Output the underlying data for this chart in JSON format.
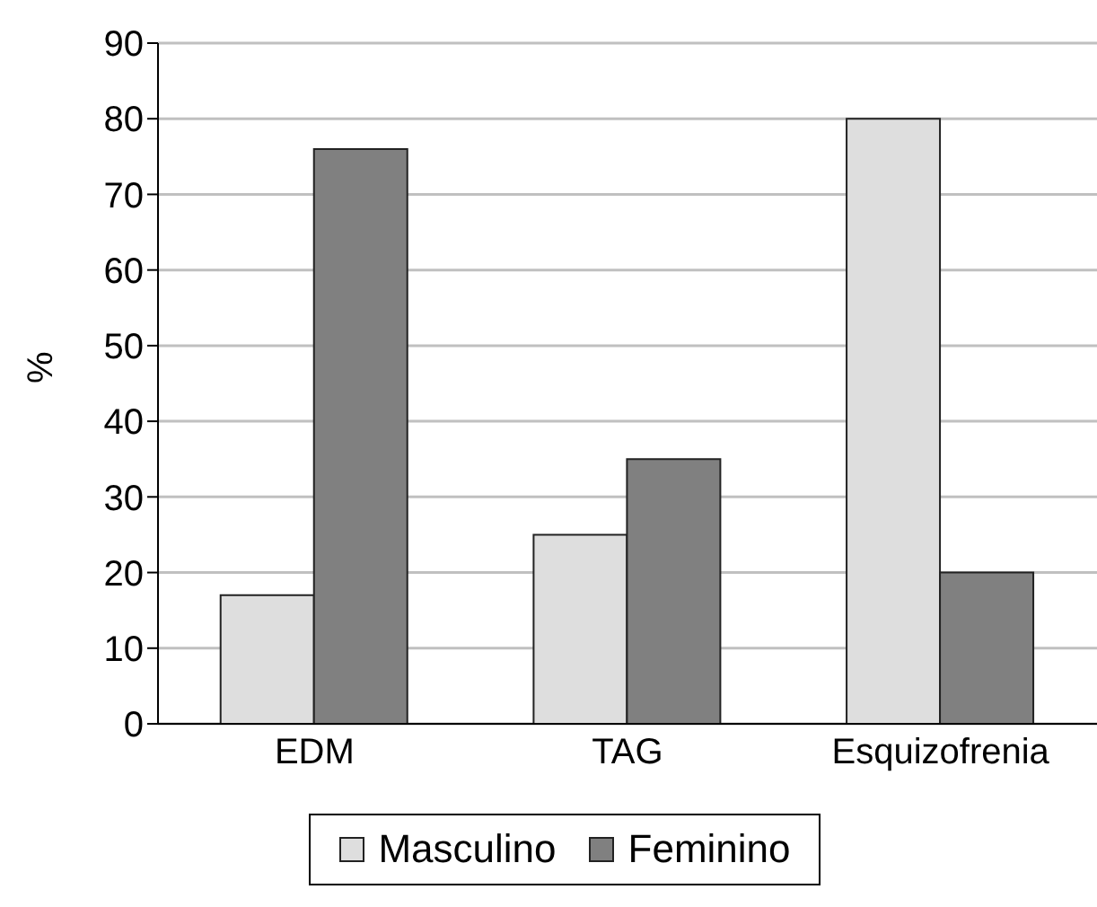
{
  "chart_data": {
    "type": "bar",
    "categories": [
      "EDM",
      "TAG",
      "Esquizofrenia"
    ],
    "ylabel": "%",
    "ylim": [
      0,
      90
    ],
    "yticks": [
      0,
      10,
      20,
      30,
      40,
      50,
      60,
      70,
      80,
      90
    ],
    "grid": "y",
    "legend": "bottom",
    "series": [
      {
        "name": "Masculino",
        "color": "#dedede",
        "values": [
          17,
          25,
          80
        ]
      },
      {
        "name": "Feminino",
        "color": "#808080",
        "values": [
          76,
          35,
          20
        ]
      }
    ]
  }
}
